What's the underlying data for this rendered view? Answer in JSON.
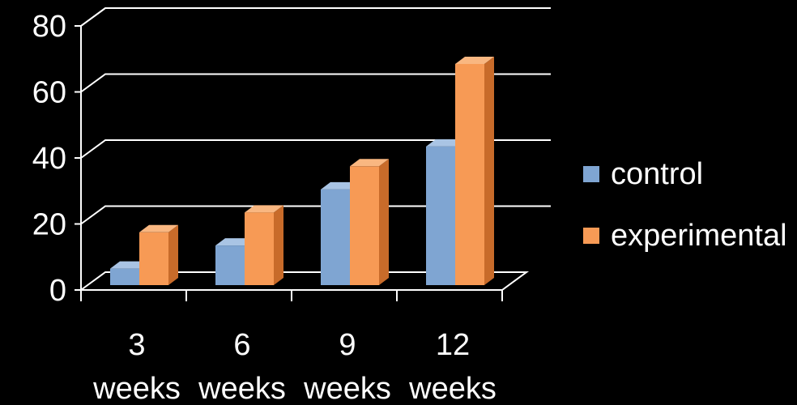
{
  "chart_data": {
    "type": "bar",
    "style": "3d-clustered-column",
    "categories": [
      {
        "line1": "3",
        "line2": "weeks"
      },
      {
        "line1": "6",
        "line2": "weeks"
      },
      {
        "line1": "9",
        "line2": "weeks"
      },
      {
        "line1": "12",
        "line2": "weeks"
      }
    ],
    "series": [
      {
        "name": "control",
        "values": [
          5,
          12,
          29,
          42
        ],
        "color": "#7fa5d2",
        "side_color": "#587fa9",
        "top_color": "#a9c4e4"
      },
      {
        "name": "experimental",
        "values": [
          16,
          22,
          36,
          67
        ],
        "color": "#f79a55",
        "side_color": "#c86b2a",
        "top_color": "#f9b781"
      }
    ],
    "yticks": [
      "0",
      "20",
      "40",
      "60",
      "80"
    ],
    "ylim": [
      0,
      80
    ],
    "grid": true,
    "legend_position": "right",
    "title": "",
    "xlabel": "",
    "ylabel": ""
  }
}
